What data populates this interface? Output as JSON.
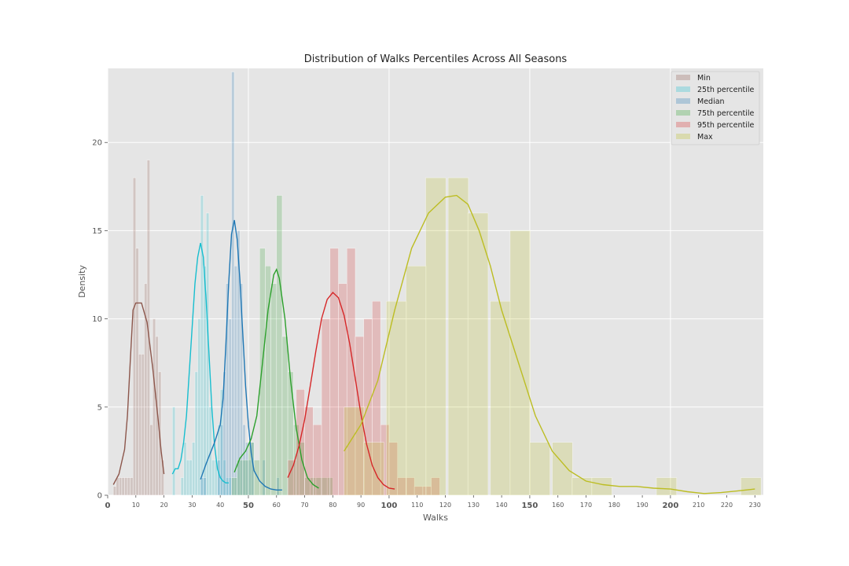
{
  "chart_data": {
    "type": "histogram",
    "title": "Distribution of Walks Percentiles Across All Seasons",
    "xlabel": "Walks",
    "ylabel": "Density",
    "xlim": [
      0,
      233
    ],
    "ylim": [
      0,
      24.2
    ],
    "grid": true,
    "legend_position": "top-right",
    "xticks_minor": [
      10,
      20,
      30,
      40,
      60,
      70,
      80,
      90,
      110,
      120,
      130,
      140,
      160,
      170,
      180,
      190,
      210,
      220,
      230
    ],
    "xticks_major": [
      0,
      50,
      100,
      150,
      200
    ],
    "yticks": [
      0,
      5,
      10,
      15,
      20
    ],
    "series": [
      {
        "name": "Min",
        "color": "#8c564b",
        "bins": [
          [
            2,
            0.5
          ],
          [
            3,
            1
          ],
          [
            4,
            1
          ],
          [
            5,
            1
          ],
          [
            6,
            1
          ],
          [
            7,
            1
          ],
          [
            8,
            1
          ],
          [
            9,
            18
          ],
          [
            10,
            14
          ],
          [
            11,
            8
          ],
          [
            12,
            8
          ],
          [
            13,
            12
          ],
          [
            14,
            19
          ],
          [
            15,
            4
          ],
          [
            16,
            10
          ],
          [
            17,
            9
          ],
          [
            18,
            7
          ],
          [
            19,
            2
          ]
        ],
        "bin_width": 1,
        "kde": [
          [
            2,
            0.6
          ],
          [
            4,
            1.2
          ],
          [
            6,
            2.6
          ],
          [
            7,
            4.5
          ],
          [
            8,
            7.5
          ],
          [
            9,
            10.5
          ],
          [
            10,
            10.9
          ],
          [
            12,
            10.9
          ],
          [
            14,
            9.8
          ],
          [
            16,
            7.2
          ],
          [
            18,
            4.2
          ],
          [
            19,
            2.5
          ],
          [
            20,
            1.2
          ]
        ]
      },
      {
        "name": "25th percentile",
        "color": "#17becf",
        "bins": [
          [
            23,
            5
          ],
          [
            26,
            1
          ],
          [
            27,
            3
          ],
          [
            28,
            2
          ],
          [
            29,
            2
          ],
          [
            30,
            3
          ],
          [
            31,
            7
          ],
          [
            32,
            10
          ],
          [
            33,
            17
          ],
          [
            34,
            13
          ],
          [
            35,
            16
          ],
          [
            36,
            5
          ],
          [
            37,
            2
          ],
          [
            38,
            2
          ],
          [
            39,
            4
          ],
          [
            40,
            6
          ],
          [
            41,
            2
          ],
          [
            42,
            1
          ],
          [
            43,
            1
          ]
        ],
        "bin_width": 1,
        "kde": [
          [
            23,
            1.2
          ],
          [
            24,
            1.5
          ],
          [
            25,
            1.5
          ],
          [
            26,
            2
          ],
          [
            27,
            3
          ],
          [
            28,
            4.5
          ],
          [
            29,
            7
          ],
          [
            30,
            9.5
          ],
          [
            31,
            12
          ],
          [
            32,
            13.5
          ],
          [
            33,
            14.3
          ],
          [
            34,
            13.5
          ],
          [
            35,
            11
          ],
          [
            36,
            8
          ],
          [
            37,
            5
          ],
          [
            38,
            2.8
          ],
          [
            39,
            1.5
          ],
          [
            40,
            1
          ],
          [
            41,
            0.8
          ],
          [
            42,
            0.7
          ],
          [
            43,
            0.7
          ]
        ]
      },
      {
        "name": "Median",
        "color": "#1f77b4",
        "bins": [
          [
            33,
            1
          ],
          [
            34,
            1
          ],
          [
            39,
            2
          ],
          [
            40,
            4
          ],
          [
            41,
            7
          ],
          [
            42,
            12
          ],
          [
            43,
            10
          ],
          [
            44,
            24
          ],
          [
            45,
            13
          ],
          [
            46,
            15
          ],
          [
            47,
            12
          ],
          [
            48,
            4
          ],
          [
            49,
            3
          ],
          [
            50,
            2
          ],
          [
            51,
            3
          ],
          [
            55,
            2
          ],
          [
            60,
            1
          ]
        ],
        "bin_width": 1,
        "kde": [
          [
            33,
            0.9
          ],
          [
            35,
            1.8
          ],
          [
            37,
            2.6
          ],
          [
            38,
            3
          ],
          [
            40,
            4
          ],
          [
            41,
            5.5
          ],
          [
            42,
            8.5
          ],
          [
            43,
            12
          ],
          [
            44,
            14.8
          ],
          [
            45,
            15.6
          ],
          [
            46,
            14.5
          ],
          [
            47,
            12.2
          ],
          [
            48,
            9.2
          ],
          [
            49,
            6.2
          ],
          [
            50,
            4
          ],
          [
            51,
            2.4
          ],
          [
            52,
            1.4
          ],
          [
            54,
            0.8
          ],
          [
            56,
            0.5
          ],
          [
            58,
            0.35
          ],
          [
            60,
            0.3
          ],
          [
            62,
            0.3
          ]
        ]
      },
      {
        "name": "75th percentile",
        "color": "#2ca02c",
        "bins": [
          [
            44,
            1
          ],
          [
            46,
            2
          ],
          [
            48,
            2
          ],
          [
            50,
            3
          ],
          [
            52,
            2
          ],
          [
            54,
            14
          ],
          [
            56,
            13
          ],
          [
            58,
            12
          ],
          [
            60,
            17
          ],
          [
            62,
            9
          ],
          [
            64,
            7
          ],
          [
            66,
            4
          ],
          [
            68,
            3
          ],
          [
            70,
            1
          ],
          [
            72,
            1
          ],
          [
            74,
            1
          ],
          [
            76,
            1
          ],
          [
            78,
            1
          ]
        ],
        "bin_width": 2,
        "kde": [
          [
            45,
            1.3
          ],
          [
            47,
            2.1
          ],
          [
            49,
            2.5
          ],
          [
            51,
            3.2
          ],
          [
            53,
            4.5
          ],
          [
            55,
            7.5
          ],
          [
            57,
            10.5
          ],
          [
            59,
            12.5
          ],
          [
            60,
            12.8
          ],
          [
            61,
            12.3
          ],
          [
            63,
            10
          ],
          [
            65,
            6.5
          ],
          [
            67,
            3.8
          ],
          [
            69,
            2
          ],
          [
            71,
            1
          ],
          [
            73,
            0.6
          ],
          [
            75,
            0.4
          ]
        ]
      },
      {
        "name": "95th percentile",
        "color": "#d62728",
        "bins": [
          [
            64,
            2
          ],
          [
            67,
            6
          ],
          [
            70,
            5
          ],
          [
            73,
            4
          ],
          [
            76,
            10
          ],
          [
            79,
            14
          ],
          [
            82,
            12
          ],
          [
            85,
            14
          ],
          [
            88,
            9
          ],
          [
            91,
            10
          ],
          [
            94,
            11
          ],
          [
            97,
            4
          ],
          [
            100,
            3
          ],
          [
            103,
            1
          ],
          [
            106,
            1
          ],
          [
            109,
            0.5
          ],
          [
            112,
            0.5
          ],
          [
            115,
            1
          ]
        ],
        "bin_width": 3,
        "kde": [
          [
            64,
            1
          ],
          [
            66,
            1.7
          ],
          [
            68,
            2.8
          ],
          [
            70,
            4.3
          ],
          [
            72,
            6.2
          ],
          [
            74,
            8.2
          ],
          [
            76,
            10
          ],
          [
            78,
            11.1
          ],
          [
            80,
            11.5
          ],
          [
            82,
            11.2
          ],
          [
            84,
            10.2
          ],
          [
            86,
            8.6
          ],
          [
            88,
            6.6
          ],
          [
            90,
            4.6
          ],
          [
            92,
            2.9
          ],
          [
            94,
            1.7
          ],
          [
            96,
            1
          ],
          [
            98,
            0.6
          ],
          [
            100,
            0.4
          ],
          [
            102,
            0.35
          ]
        ]
      },
      {
        "name": "Max",
        "color": "#bcbd22",
        "bins": [
          [
            84,
            5
          ],
          [
            91,
            3
          ],
          [
            99,
            11
          ],
          [
            106,
            13
          ],
          [
            113,
            18
          ],
          [
            121,
            18
          ],
          [
            128,
            16
          ],
          [
            136,
            11
          ],
          [
            143,
            15
          ],
          [
            150,
            3
          ],
          [
            158,
            3
          ],
          [
            165,
            1
          ],
          [
            172,
            1
          ],
          [
            195,
            1
          ],
          [
            225,
            1
          ]
        ],
        "bin_width": 7.2,
        "kde": [
          [
            84,
            2.5
          ],
          [
            90,
            4
          ],
          [
            96,
            6.5
          ],
          [
            102,
            10.5
          ],
          [
            108,
            14
          ],
          [
            114,
            16
          ],
          [
            120,
            16.9
          ],
          [
            124,
            17
          ],
          [
            128,
            16.5
          ],
          [
            132,
            15
          ],
          [
            136,
            13
          ],
          [
            140,
            10.5
          ],
          [
            146,
            7.5
          ],
          [
            152,
            4.5
          ],
          [
            158,
            2.5
          ],
          [
            164,
            1.4
          ],
          [
            170,
            0.8
          ],
          [
            176,
            0.6
          ],
          [
            182,
            0.5
          ],
          [
            188,
            0.5
          ],
          [
            194,
            0.4
          ],
          [
            200,
            0.35
          ],
          [
            206,
            0.2
          ],
          [
            212,
            0.1
          ],
          [
            218,
            0.15
          ],
          [
            224,
            0.25
          ],
          [
            230,
            0.35
          ]
        ]
      }
    ]
  }
}
